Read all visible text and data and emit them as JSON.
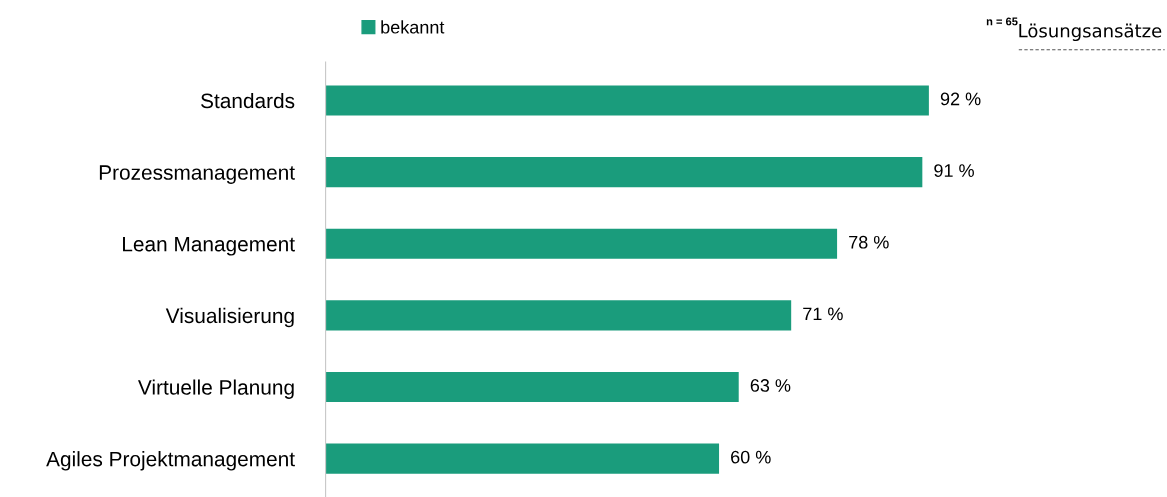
{
  "chart_data": {
    "type": "bar",
    "orientation": "horizontal",
    "categories": [
      "Standards",
      "Prozessmanagement",
      "Lean Management",
      "Visualisierung",
      "Virtuelle Planung",
      "Agiles Projektmanagement"
    ],
    "series": [
      {
        "name": "bekannt",
        "color": "#1a9c7c",
        "values": [
          92,
          91,
          78,
          71,
          63,
          60
        ],
        "value_labels": [
          "92 %",
          "91 %",
          "78 %",
          "71 %",
          "63 %",
          "60 %"
        ]
      }
    ],
    "legend": "top",
    "grid": false,
    "tick_labels": "y",
    "annotations": [
      "n = 65",
      "Lösungsansätze"
    ]
  }
}
